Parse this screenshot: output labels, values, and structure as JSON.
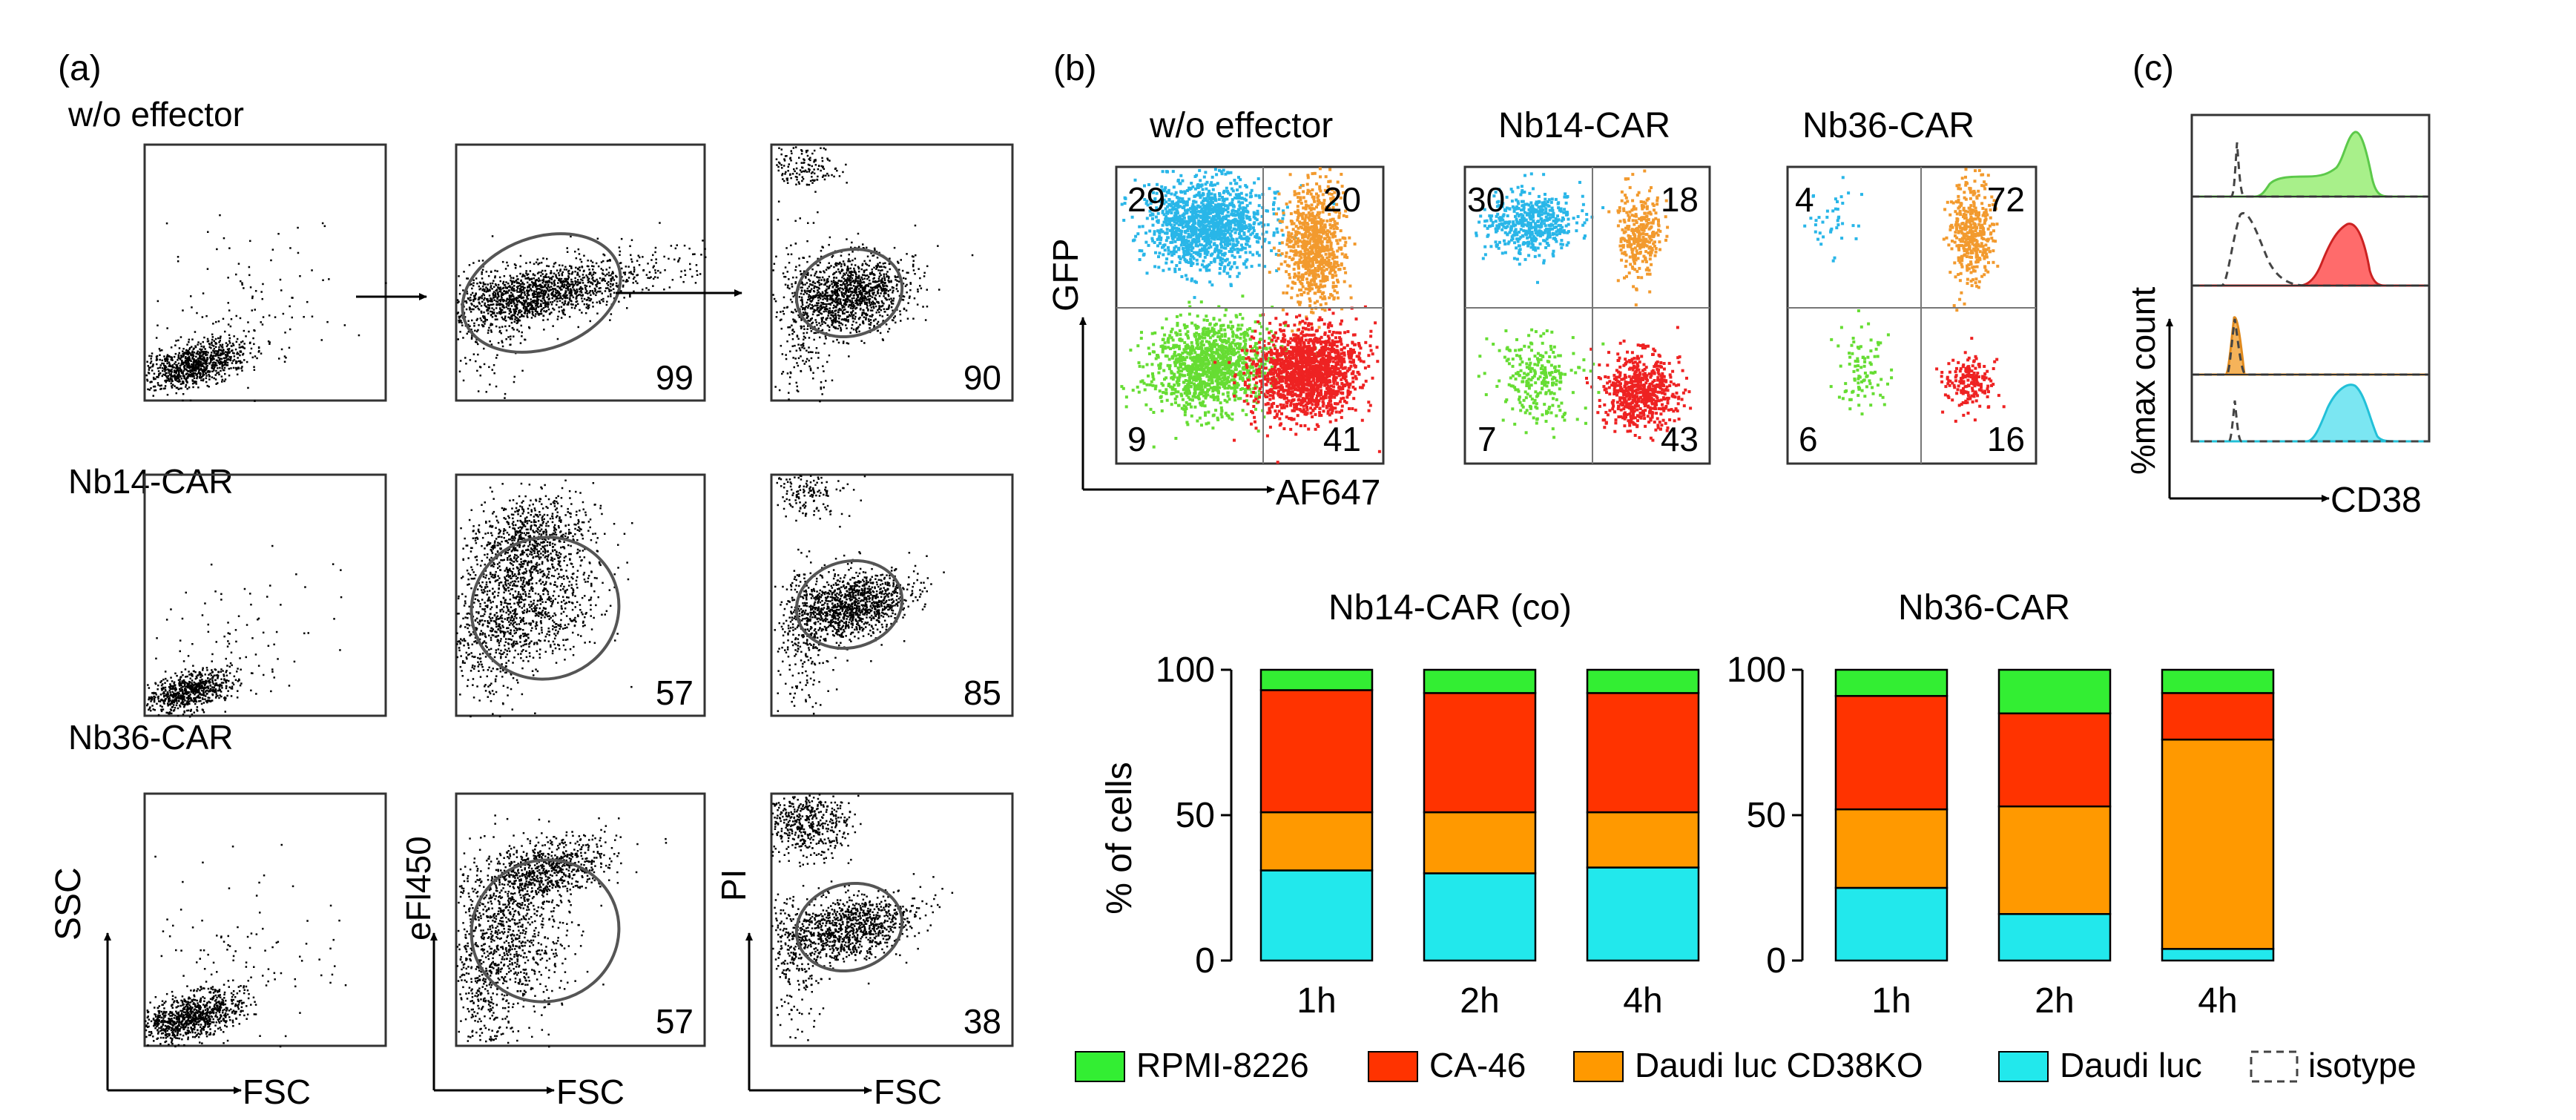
{
  "panel_a": {
    "label": "(a)",
    "rows": [
      {
        "title": "w/o effector",
        "values": [
          "99",
          "90"
        ]
      },
      {
        "title": "Nb14-CAR",
        "values": [
          "57",
          "85"
        ]
      },
      {
        "title": "Nb36-CAR",
        "values": [
          "57",
          "38"
        ]
      }
    ],
    "axes": {
      "ssc": "SSC",
      "efl450": "eFl450",
      "pi": "PI",
      "fsc": "FSC"
    }
  },
  "panel_b": {
    "label": "(b)",
    "plots": [
      {
        "title": "w/o effector",
        "quadrants": [
          "29",
          "20",
          "9",
          "41"
        ]
      },
      {
        "title": "Nb14-CAR",
        "quadrants": [
          "30",
          "18",
          "7",
          "43"
        ]
      },
      {
        "title": "Nb36-CAR",
        "quadrants": [
          "4",
          "72",
          "6",
          "16"
        ]
      }
    ],
    "axes": {
      "y": "GFP",
      "x": "AF647"
    }
  },
  "panel_c": {
    "label": "(c)",
    "ylabel": "%max count",
    "xlabel": "CD38"
  },
  "colors": {
    "rpmi": "#33ee33",
    "ca46": "#ff3300",
    "daudiko": "#ff9900",
    "daudi": "#22e8ec",
    "scatter_cyan": "#29b6e8",
    "scatter_orange": "#f29a2e",
    "scatter_green": "#66dd33",
    "scatter_red": "#ee2222"
  },
  "chart_data": [
    {
      "type": "bar",
      "stacked": true,
      "title": "Nb14-CAR (co)",
      "ylabel": "% of cells",
      "xlabel": "",
      "categories": [
        "1h",
        "2h",
        "4h"
      ],
      "ylim": [
        0,
        100
      ],
      "yticks": [
        0,
        50,
        100
      ],
      "series": [
        {
          "name": "Daudi luc",
          "values": [
            31,
            30,
            32
          ]
        },
        {
          "name": "Daudi luc CD38KO",
          "values": [
            20,
            21,
            19
          ]
        },
        {
          "name": "CA-46",
          "values": [
            42,
            41,
            41
          ]
        },
        {
          "name": "RPMI-8226",
          "values": [
            7,
            8,
            8
          ]
        }
      ]
    },
    {
      "type": "bar",
      "stacked": true,
      "title": "Nb36-CAR",
      "ylabel": "",
      "xlabel": "",
      "categories": [
        "1h",
        "2h",
        "4h"
      ],
      "ylim": [
        0,
        100
      ],
      "yticks": [
        0,
        50,
        100
      ],
      "series": [
        {
          "name": "Daudi luc",
          "values": [
            25,
            16,
            4
          ]
        },
        {
          "name": "Daudi luc CD38KO",
          "values": [
            27,
            37,
            72
          ]
        },
        {
          "name": "CA-46",
          "values": [
            39,
            32,
            16
          ]
        },
        {
          "name": "RPMI-8226",
          "values": [
            9,
            15,
            8
          ]
        }
      ]
    }
  ],
  "legend": [
    {
      "label": "RPMI-8226"
    },
    {
      "label": "CA-46"
    },
    {
      "label": "Daudi luc CD38KO"
    },
    {
      "label": "Daudi luc"
    },
    {
      "label": "isotype"
    }
  ]
}
